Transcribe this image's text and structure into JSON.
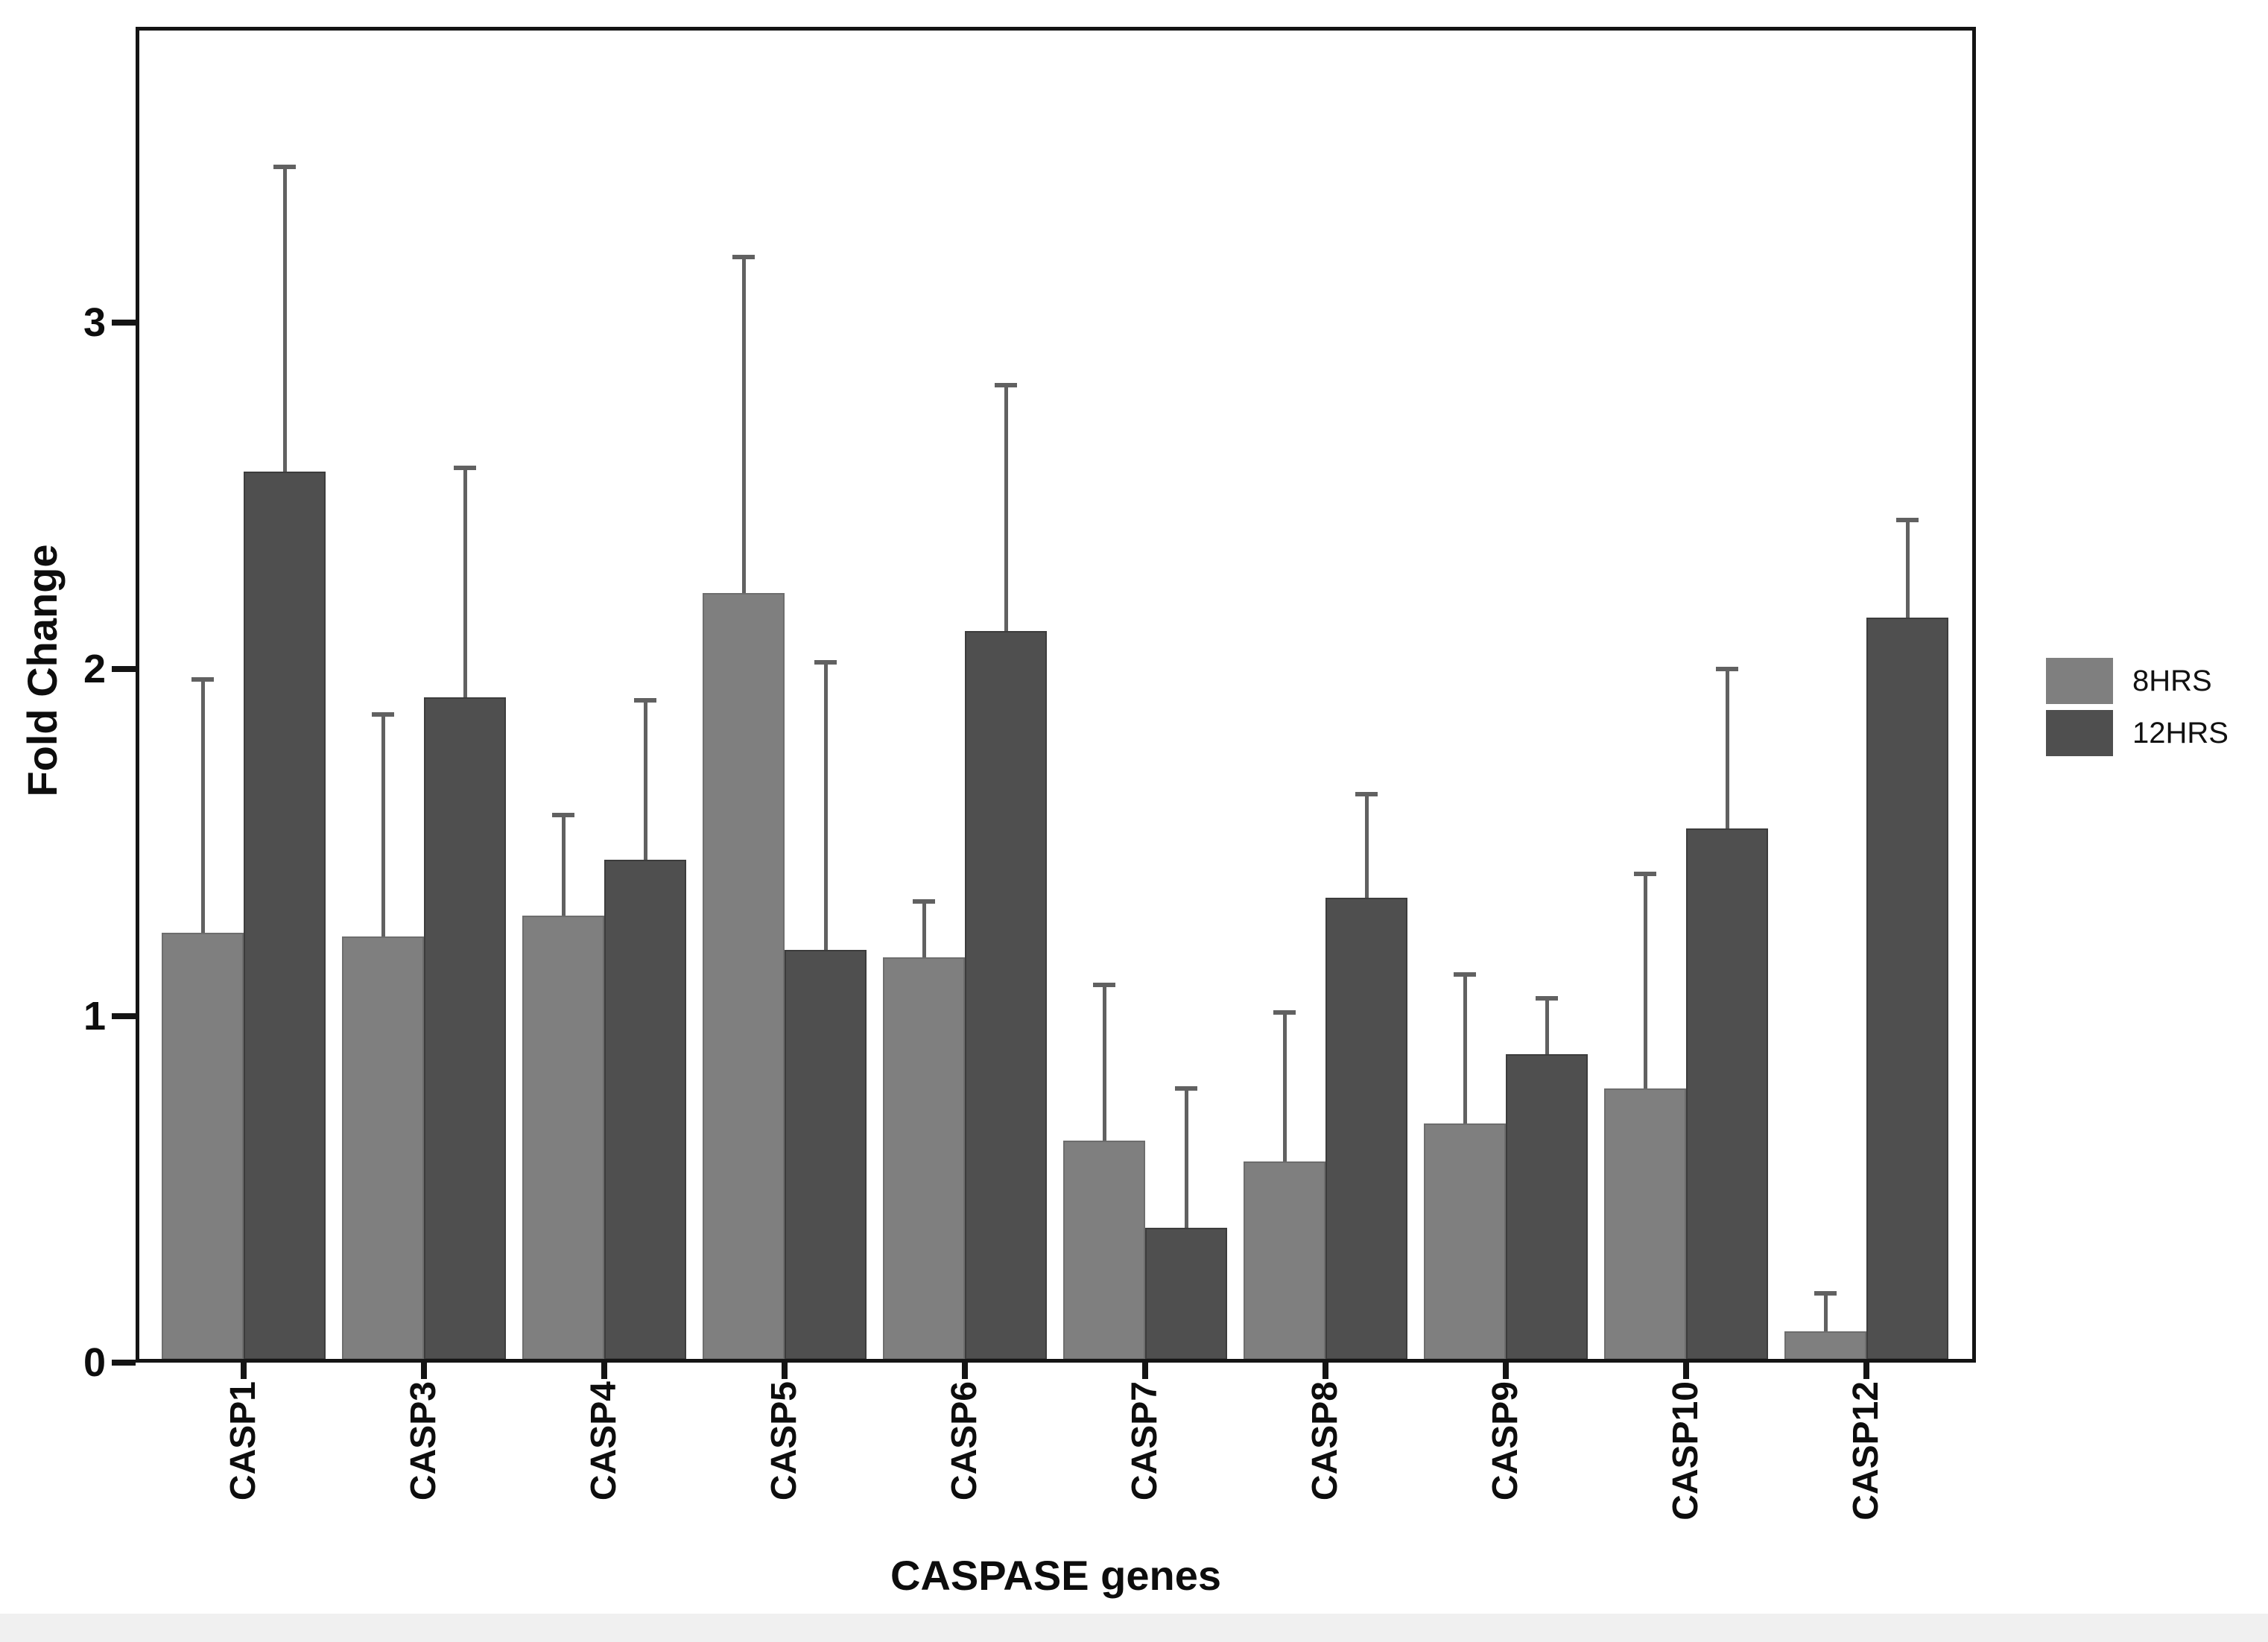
{
  "figure": {
    "ylabel": "Fold Change",
    "xlabel": "CASPASE genes"
  },
  "chart_data": {
    "type": "bar",
    "title": "",
    "xlabel": "CASPASE genes",
    "ylabel": "Fold Change",
    "categories": [
      "CASP1",
      "CASP3",
      "CASP4",
      "CASP5",
      "CASP6",
      "CASP7",
      "CASP8",
      "CASP9",
      "CASP10",
      "CASP12"
    ],
    "series": [
      {
        "name": "8HRS",
        "color": "#7f7f7f",
        "border_color": "#6d6d6d",
        "values": [
          1.24,
          1.23,
          1.29,
          2.22,
          1.17,
          0.64,
          0.58,
          0.69,
          0.79,
          0.09
        ],
        "errors_upper": [
          0.73,
          0.64,
          0.29,
          0.97,
          0.16,
          0.45,
          0.43,
          0.43,
          0.62,
          0.11
        ]
      },
      {
        "name": "12HRS",
        "color": "#4f4f4f",
        "border_color": "#3c3c3c",
        "values": [
          2.57,
          1.92,
          1.45,
          1.19,
          2.11,
          0.39,
          1.34,
          0.89,
          1.54,
          2.15
        ],
        "errors_upper": [
          0.88,
          0.66,
          0.46,
          0.83,
          0.71,
          0.4,
          0.3,
          0.16,
          0.46,
          0.28
        ]
      }
    ],
    "ylim": [
      0,
      3.85
    ],
    "yticks": [
      0,
      1,
      2,
      3
    ],
    "grid": false,
    "legend_position": "right",
    "error_bars": "upper",
    "bar_color_8hrs": "#7f7f7f",
    "bar_color_12hrs": "#4f4f4f",
    "error_bar_color": "#616161"
  }
}
